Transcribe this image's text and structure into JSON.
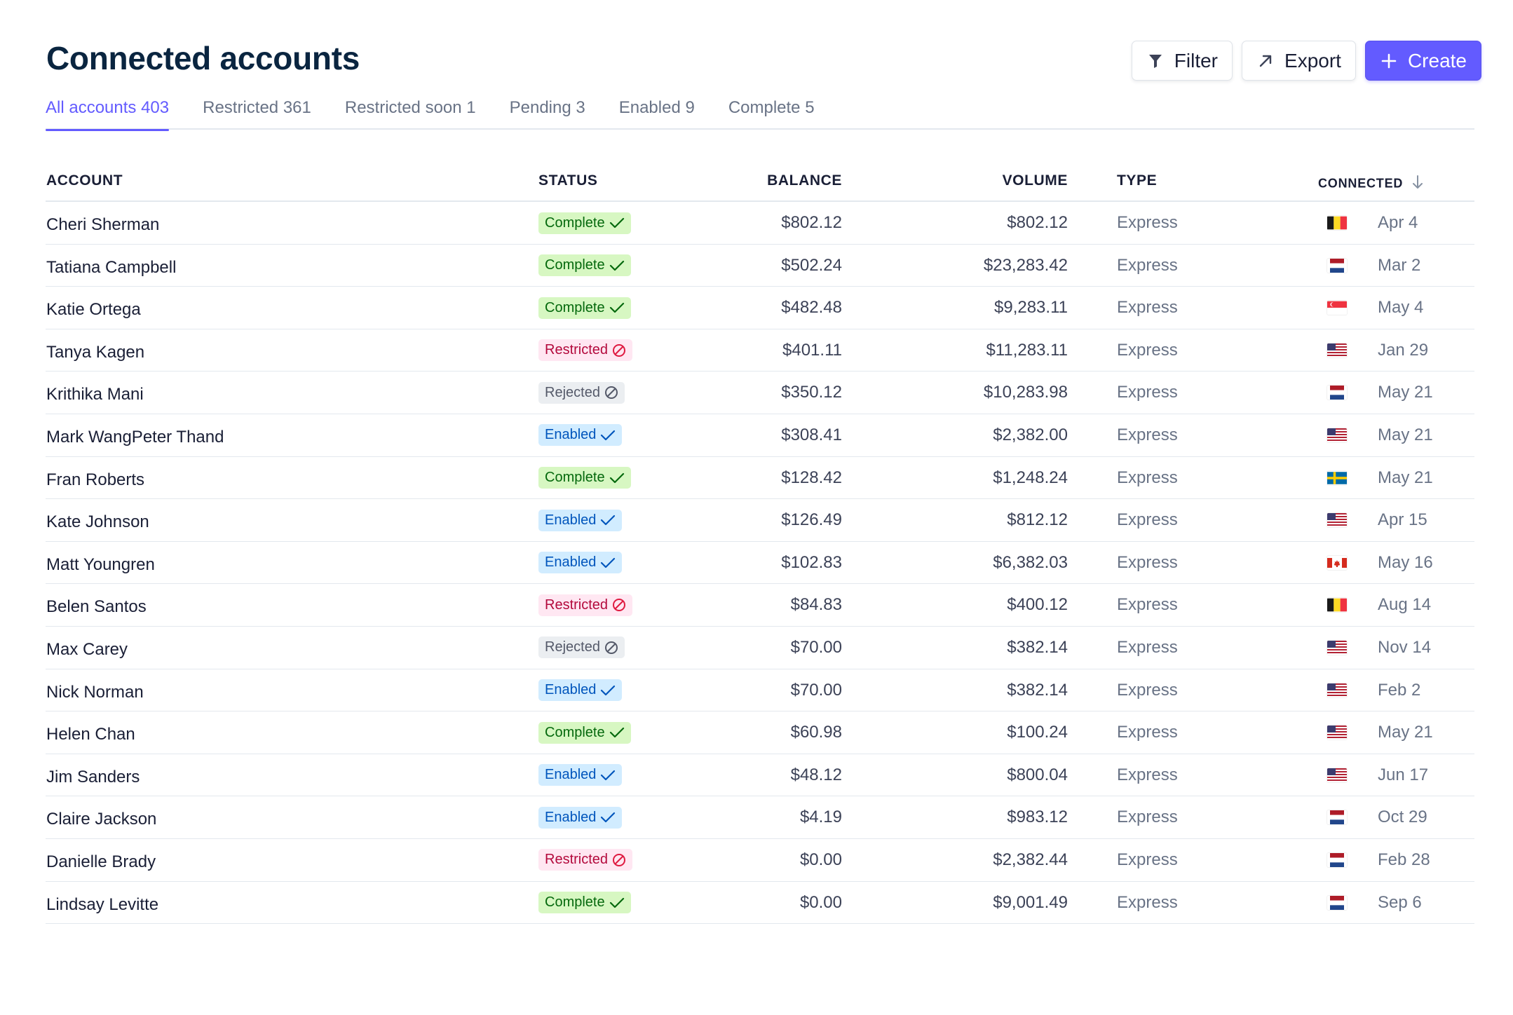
{
  "header": {
    "title": "Connected accounts",
    "filter_label": "Filter",
    "export_label": "Export",
    "create_label": "Create"
  },
  "tabs": [
    {
      "label": "All accounts 403",
      "active": true
    },
    {
      "label": "Restricted 361",
      "active": false
    },
    {
      "label": "Restricted soon 1",
      "active": false
    },
    {
      "label": "Pending 3",
      "active": false
    },
    {
      "label": "Enabled 9",
      "active": false
    },
    {
      "label": "Complete 5",
      "active": false
    }
  ],
  "columns": {
    "account": "ACCOUNT",
    "status": "STATUS",
    "balance": "BALANCE",
    "volume": "VOLUME",
    "type": "TYPE",
    "connected": "CONNECTED"
  },
  "colors": {
    "accent": "#635bff",
    "complete_bg": "#d7f7c2",
    "restricted_bg": "#ffe7f2",
    "rejected_bg": "#ebeef1",
    "enabled_bg": "#d1ecff"
  },
  "rows": [
    {
      "name": "Cheri Sherman",
      "status": "Complete",
      "balance": "$802.12",
      "volume": "$802.12",
      "type": "Express",
      "flag": "belgium",
      "date": "Apr 4"
    },
    {
      "name": "Tatiana Campbell",
      "status": "Complete",
      "balance": "$502.24",
      "volume": "$23,283.42",
      "type": "Express",
      "flag": "netherlands",
      "date": "Mar 2"
    },
    {
      "name": "Katie Ortega",
      "status": "Complete",
      "balance": "$482.48",
      "volume": "$9,283.11",
      "type": "Express",
      "flag": "singapore",
      "date": "May 4"
    },
    {
      "name": "Tanya Kagen",
      "status": "Restricted",
      "balance": "$401.11",
      "volume": "$11,283.11",
      "type": "Express",
      "flag": "usa",
      "date": "Jan 29"
    },
    {
      "name": "Krithika Mani",
      "status": "Rejected",
      "balance": "$350.12",
      "volume": "$10,283.98",
      "type": "Express",
      "flag": "netherlands",
      "date": "May 21"
    },
    {
      "name": "Mark WangPeter Thand",
      "status": "Enabled",
      "balance": "$308.41",
      "volume": "$2,382.00",
      "type": "Express",
      "flag": "usa",
      "date": "May 21"
    },
    {
      "name": "Fran Roberts",
      "status": "Complete",
      "balance": "$128.42",
      "volume": "$1,248.24",
      "type": "Express",
      "flag": "sweden",
      "date": "May 21"
    },
    {
      "name": "Kate Johnson",
      "status": "Enabled",
      "balance": "$126.49",
      "volume": "$812.12",
      "type": "Express",
      "flag": "usa",
      "date": "Apr 15"
    },
    {
      "name": "Matt Youngren",
      "status": "Enabled",
      "balance": "$102.83",
      "volume": "$6,382.03",
      "type": "Express",
      "flag": "canada",
      "date": "May 16"
    },
    {
      "name": "Belen Santos",
      "status": "Restricted",
      "balance": "$84.83",
      "volume": "$400.12",
      "type": "Express",
      "flag": "belgium",
      "date": "Aug 14"
    },
    {
      "name": "Max Carey",
      "status": "Rejected",
      "balance": "$70.00",
      "volume": "$382.14",
      "type": "Express",
      "flag": "usa",
      "date": "Nov 14"
    },
    {
      "name": "Nick Norman",
      "status": "Enabled",
      "balance": "$70.00",
      "volume": "$382.14",
      "type": "Express",
      "flag": "usa",
      "date": "Feb 2"
    },
    {
      "name": "Helen Chan",
      "status": "Complete",
      "balance": "$60.98",
      "volume": "$100.24",
      "type": "Express",
      "flag": "usa",
      "date": "May 21"
    },
    {
      "name": "Jim Sanders",
      "status": "Enabled",
      "balance": "$48.12",
      "volume": "$800.04",
      "type": "Express",
      "flag": "usa",
      "date": "Jun 17"
    },
    {
      "name": "Claire Jackson",
      "status": "Enabled",
      "balance": "$4.19",
      "volume": "$983.12",
      "type": "Express",
      "flag": "netherlands",
      "date": "Oct 29"
    },
    {
      "name": "Danielle Brady",
      "status": "Restricted",
      "balance": "$0.00",
      "volume": "$2,382.44",
      "type": "Express",
      "flag": "netherlands",
      "date": "Feb 28"
    },
    {
      "name": "Lindsay Levitte",
      "status": "Complete",
      "balance": "$0.00",
      "volume": "$9,001.49",
      "type": "Express",
      "flag": "netherlands",
      "date": "Sep 6"
    }
  ]
}
